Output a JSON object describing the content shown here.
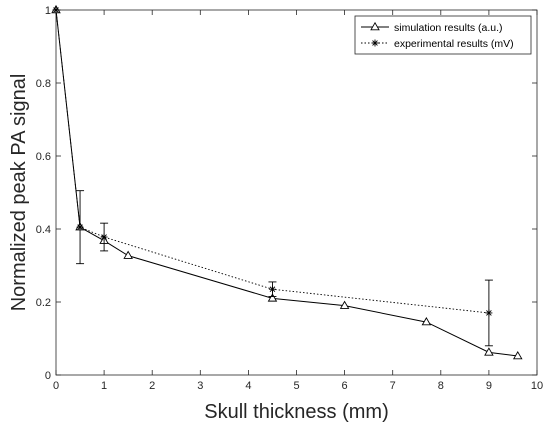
{
  "chart_data": {
    "type": "line",
    "xlabel": "Skull thickness (mm)",
    "ylabel": "Normalized peak PA signal",
    "xlim": [
      0,
      10
    ],
    "ylim": [
      0,
      1
    ],
    "xticks": [
      "0",
      "1",
      "2",
      "3",
      "4",
      "5",
      "6",
      "7",
      "8",
      "9",
      "10"
    ],
    "yticks": [
      "0",
      "0.2",
      "0.4",
      "0.6",
      "0.8",
      "1"
    ],
    "grid": false,
    "legend_position": "top-right",
    "series": [
      {
        "name": "simulation results (a.u.)",
        "marker": "triangle",
        "line_style": "solid",
        "color": "#000000",
        "x": [
          0,
          0.5,
          1,
          1.5,
          4.5,
          6,
          7.7,
          9,
          9.6
        ],
        "y": [
          1.0,
          0.405,
          0.368,
          0.327,
          0.21,
          0.19,
          0.145,
          0.062,
          0.052
        ]
      },
      {
        "name": "experimental results (mV)",
        "marker": "star",
        "line_style": "dotted",
        "color": "#000000",
        "x": [
          0,
          0.5,
          1,
          4.5,
          9
        ],
        "y": [
          1.0,
          0.405,
          0.378,
          0.235,
          0.17
        ],
        "error": [
          0.0,
          0.1,
          0.038,
          0.02,
          0.09
        ]
      }
    ]
  }
}
